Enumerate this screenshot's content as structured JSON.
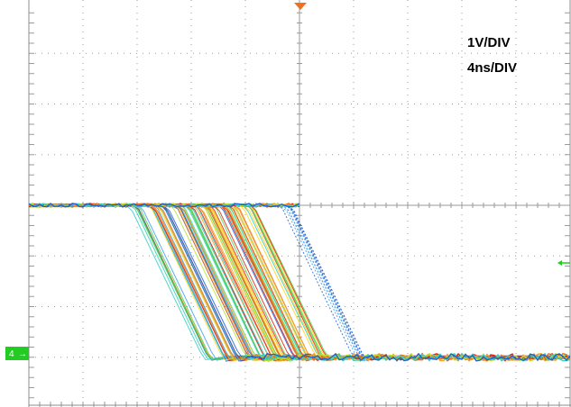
{
  "chart_data": {
    "type": "line",
    "title": "",
    "xlabel": "",
    "ylabel": "",
    "annotations": [
      "1V/DIV",
      "4ns/DIV"
    ],
    "x_units": "ns",
    "y_units": "V",
    "grid": true,
    "xlim": [
      -20,
      20
    ],
    "ylim": [
      -4,
      4
    ],
    "channel_marker": "4",
    "colors": {
      "grid": "#9a9a9a",
      "frame": "#8c8c8c",
      "trigger_marker": "#f07020",
      "ground_marker": "#22cc22",
      "trace_palette": [
        "#e02010",
        "#f06a10",
        "#f0a020",
        "#ffd21a",
        "#b8e030",
        "#50d050",
        "#30d0c0",
        "#40a0f0",
        "#2060d0"
      ]
    },
    "series": [
      {
        "x": [
          -20,
          -12.3,
          -11.9,
          -6.9,
          -6.5,
          -5.5,
          20
        ],
        "y": [
          0,
          0,
          -0.1,
          -2.9,
          -3.05,
          -3.0,
          -3.0
        ]
      },
      {
        "x": [
          -20,
          -11.2,
          -10.8,
          -5.8,
          -5.4,
          -4.4,
          20
        ],
        "y": [
          0,
          0,
          -0.1,
          -2.9,
          -3.05,
          -3.0,
          -3.0
        ]
      },
      {
        "x": [
          -20,
          -10.2,
          -9.8,
          -4.8,
          -4.4,
          -3.4,
          20
        ],
        "y": [
          0,
          0,
          -0.1,
          -2.9,
          -3.05,
          -3.0,
          -3.0
        ]
      },
      {
        "x": [
          -20,
          -9.3,
          -8.9,
          -3.9,
          -3.5,
          -2.5,
          20
        ],
        "y": [
          0,
          0,
          -0.1,
          -2.9,
          -3.05,
          -3.0,
          -3.0
        ]
      },
      {
        "x": [
          -20,
          -8.5,
          -8.1,
          -3.1,
          -2.7,
          -1.7,
          20
        ],
        "y": [
          0,
          0,
          -0.1,
          -2.9,
          -3.05,
          -3.0,
          -3.0
        ]
      },
      {
        "x": [
          -20,
          -7.6,
          -7.2,
          -2.2,
          -1.8,
          -0.8,
          20
        ],
        "y": [
          0,
          0,
          -0.1,
          -2.9,
          -3.05,
          -3.0,
          -3.0
        ]
      },
      {
        "x": [
          -20,
          -6.8,
          -6.4,
          -1.4,
          -1.0,
          0.0,
          20
        ],
        "y": [
          0,
          0,
          -0.1,
          -2.9,
          -3.05,
          -3.0,
          -3.0
        ]
      },
      {
        "x": [
          -20,
          -5.9,
          -5.5,
          -0.5,
          -0.1,
          0.9,
          20
        ],
        "y": [
          0,
          0,
          -0.1,
          -2.9,
          -3.05,
          -3.0,
          -3.0
        ]
      },
      {
        "x": [
          -20,
          -5.0,
          -4.6,
          0.4,
          0.8,
          1.8,
          20
        ],
        "y": [
          0,
          0,
          -0.1,
          -2.9,
          -3.05,
          -3.0,
          -3.0
        ]
      },
      {
        "x": [
          -20,
          -4.0,
          -3.6,
          1.4,
          1.8,
          2.8,
          20
        ],
        "y": [
          0,
          0,
          -0.1,
          -2.9,
          -3.05,
          -3.0,
          -3.0
        ]
      },
      {
        "x": [
          -20,
          -1.2,
          -0.8,
          4.2,
          4.6,
          5.6,
          20
        ],
        "y": [
          0,
          0,
          -0.1,
          -2.9,
          -3.05,
          -3.0,
          -3.0
        ]
      }
    ]
  }
}
